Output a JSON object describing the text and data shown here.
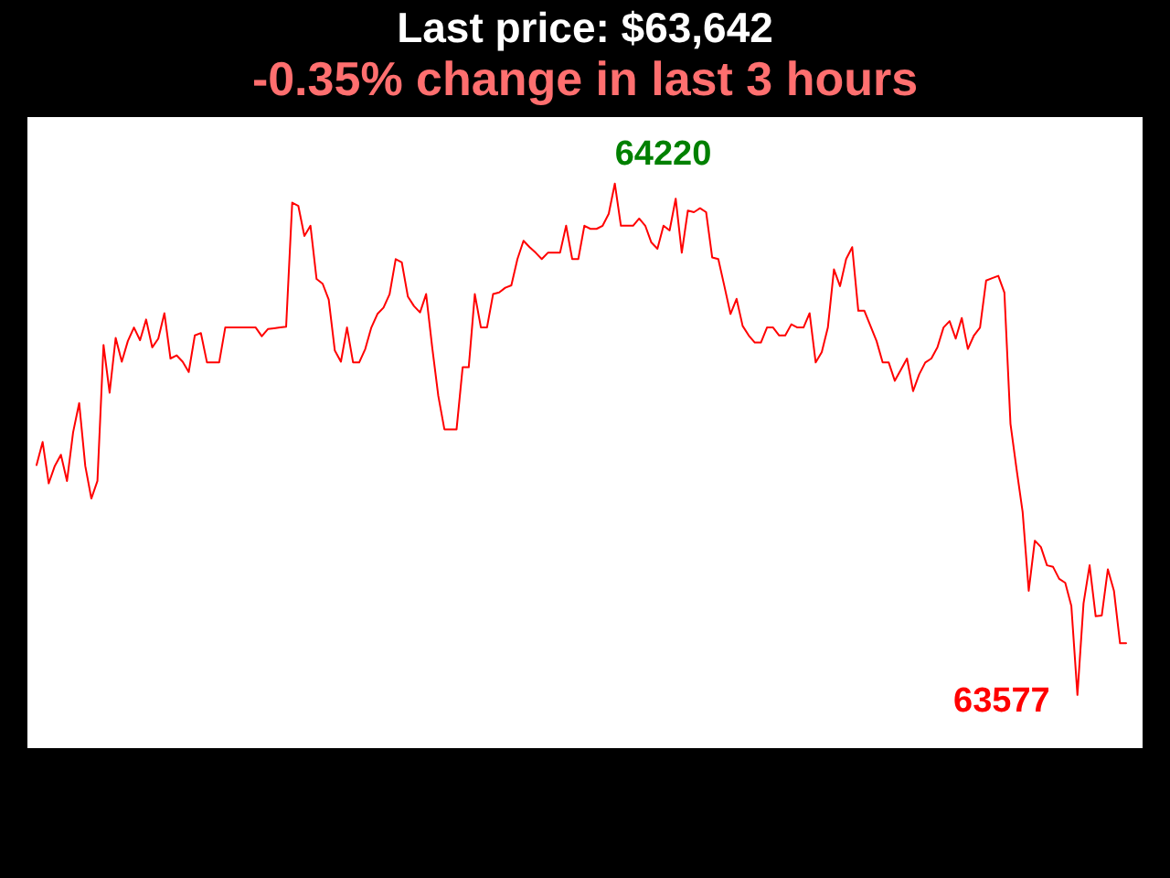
{
  "chart_data": {
    "type": "line",
    "title": "Last price: $63,642",
    "subtitle": "-0.35% change in last 3 hours",
    "categories": [
      null,
      null,
      null,
      null,
      null,
      null,
      null,
      null,
      null,
      null,
      null,
      null,
      null,
      null,
      null,
      null,
      null,
      null,
      null,
      null,
      null,
      null,
      null,
      null,
      null,
      null,
      null,
      null,
      null,
      null,
      null,
      null,
      null,
      null,
      null,
      null,
      null,
      null,
      null,
      null,
      null,
      null,
      null,
      null,
      null,
      null,
      null,
      null,
      null,
      null,
      null,
      null,
      null,
      null,
      null,
      null,
      null,
      null,
      null,
      null,
      null,
      null,
      null,
      null,
      null,
      null,
      null,
      null,
      null,
      null,
      null,
      null,
      null,
      null,
      null,
      null,
      null,
      null,
      null,
      null,
      null,
      null,
      null,
      null,
      null,
      null,
      null,
      null,
      null,
      null,
      null,
      null,
      null,
      null,
      null,
      null,
      null,
      null,
      null,
      null,
      null,
      null,
      null,
      null,
      null,
      null,
      null,
      null,
      null,
      null,
      null,
      null,
      null,
      null,
      null,
      null,
      null,
      null,
      null,
      null,
      null,
      null,
      null,
      null,
      null,
      null,
      null,
      null,
      null,
      null,
      null,
      null,
      null,
      null,
      null,
      null,
      null,
      null,
      null,
      null,
      null,
      null,
      null,
      null,
      null,
      null,
      null,
      null,
      null,
      null,
      null,
      null,
      null,
      null,
      null,
      null,
      null,
      null,
      null,
      null,
      null,
      null,
      null,
      null,
      null,
      null,
      null,
      null,
      null,
      null,
      null,
      null,
      null,
      null,
      null,
      null,
      null,
      null,
      null,
      null
    ],
    "series": [
      {
        "color": "#ff0000",
        "values": [
          63866,
          63895,
          63843,
          63865,
          63879,
          63846,
          63907,
          63944,
          63865,
          63824,
          63846,
          64017,
          63957,
          64026,
          63996,
          64022,
          64039,
          64023,
          64049,
          64014,
          64025,
          64057,
          64000,
          64004,
          63996,
          63983,
          64029,
          64032,
          63995,
          63995,
          63995,
          64039,
          64039,
          64039,
          64039,
          64039,
          64039,
          64028,
          64037,
          64038,
          64039,
          64040,
          64196,
          64192,
          64154,
          64167,
          64100,
          64094,
          64074,
          64010,
          63996,
          64039,
          63995,
          63995,
          64012,
          64039,
          64056,
          64064,
          64081,
          64125,
          64121,
          64078,
          64066,
          64058,
          64081,
          64014,
          63953,
          63911,
          63911,
          63911,
          63989,
          63989,
          64081,
          64039,
          64039,
          64081,
          64083,
          64089,
          64092,
          64125,
          64148,
          64140,
          64133,
          64125,
          64133,
          64133,
          64133,
          64167,
          64125,
          64125,
          64167,
          64163,
          64163,
          64167,
          64182,
          64220,
          64167,
          64167,
          64167,
          64176,
          64167,
          64146,
          64138,
          64167,
          64161,
          64201,
          64133,
          64186,
          64184,
          64189,
          64184,
          64127,
          64125,
          64091,
          64056,
          64075,
          64041,
          64029,
          64020,
          64020,
          64039,
          64039,
          64029,
          64029,
          64043,
          64039,
          64039,
          64057,
          63995,
          64008,
          64039,
          64112,
          64091,
          64125,
          64140,
          64060,
          64060,
          64041,
          64022,
          63995,
          63995,
          63972,
          63986,
          64000,
          63959,
          63980,
          63995,
          64000,
          64014,
          64039,
          64047,
          64025,
          64051,
          64012,
          64029,
          64039,
          64098,
          64101,
          64104,
          64083,
          63918,
          63861,
          63807,
          63708,
          63771,
          63763,
          63740,
          63738,
          63723,
          63718,
          63689,
          63577,
          63692,
          63740,
          63676,
          63677,
          63735,
          63708,
          63642,
          63642
        ],
        "value_labels": [
          null,
          null,
          null,
          null,
          null,
          null,
          null,
          null,
          null,
          null,
          null,
          null,
          null,
          null,
          null,
          null,
          null,
          null,
          null,
          null,
          null,
          null,
          null,
          null,
          null,
          null,
          null,
          null,
          null,
          null,
          null,
          null,
          null,
          null,
          null,
          null,
          null,
          null,
          null,
          null,
          null,
          null,
          null,
          null,
          null,
          null,
          null,
          null,
          null,
          null,
          null,
          null,
          null,
          null,
          null,
          null,
          null,
          null,
          null,
          null,
          null,
          null,
          null,
          null,
          null,
          null,
          null,
          null,
          null,
          null,
          null,
          null,
          null,
          null,
          null,
          null,
          null,
          null,
          null,
          null,
          null,
          null,
          null,
          null,
          null,
          null,
          null,
          null,
          null,
          null,
          null,
          null,
          null,
          null,
          null,
          "64220",
          null,
          null,
          null,
          null,
          null,
          null,
          null,
          null,
          null,
          null,
          null,
          null,
          null,
          null,
          null,
          null,
          null,
          null,
          null,
          null,
          null,
          null,
          null,
          null,
          null,
          null,
          null,
          null,
          null,
          null,
          null,
          null,
          null,
          null,
          null,
          null,
          null,
          null,
          null,
          null,
          null,
          null,
          null,
          null,
          null,
          null,
          null,
          null,
          null,
          null,
          null,
          null,
          null,
          null,
          null,
          null,
          null,
          null,
          null,
          null,
          null,
          null,
          null,
          null,
          null,
          null,
          null,
          null,
          null,
          null,
          null,
          null,
          null,
          null,
          null,
          "63577",
          null,
          null,
          null,
          null,
          null,
          null,
          null,
          null
        ]
      }
    ]
  }
}
